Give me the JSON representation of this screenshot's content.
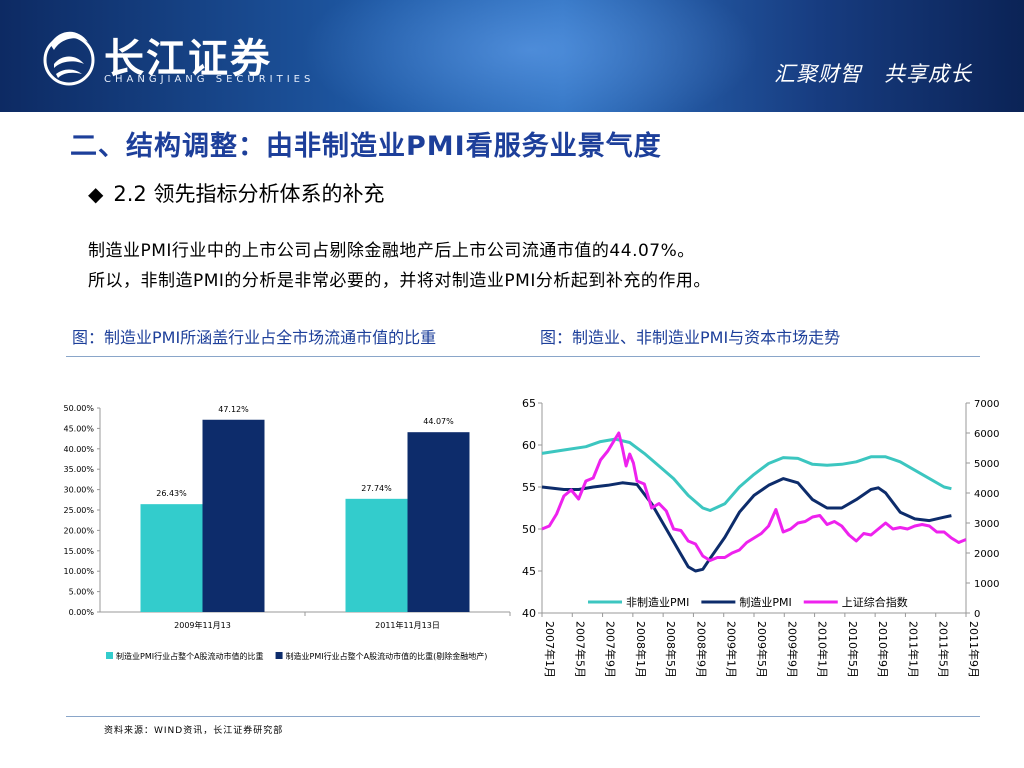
{
  "header": {
    "logo_name": "长江证券",
    "logo_sub": "CHANGJIANG SECURITIES",
    "slogan": "汇聚财智　共享成长"
  },
  "title": "二、结构调整：由非制造业PMI看服务业景气度",
  "subtitle": "2.2 领先指标分析体系的补充",
  "paragraphs": [
    "制造业PMI行业中的上市公司占剔除金融地产后上市公司流通市值的44.07%。",
    "所以，非制造PMI的分析是非常必要的，并将对制造业PMI分析起到补充的作用。"
  ],
  "captions": {
    "left": "图：制造业PMI所涵盖行业占全市场流通市值的比重",
    "right": "图：制造业、非制造业PMI与资本市场走势"
  },
  "source": "资料来源：WIND资讯，长江证券研究部",
  "colors": {
    "title_blue": "#1d3f9a",
    "bar_teal": "#33cccc",
    "bar_navy": "#0d2c6b",
    "line_nonmfg": "#3cc6c0",
    "line_mfg": "#0d2c6b",
    "line_index": "#ee22ee"
  },
  "chart_data": [
    {
      "type": "bar",
      "categories": [
        "2009年11月13",
        "2011年11月13日"
      ],
      "series": [
        {
          "name": "制造业PMI行业占整个A股流动市值的比重",
          "values": [
            26.43,
            27.74
          ]
        },
        {
          "name": "制造业PMI行业占整个A股流动市值的比重(剔除金融地产)",
          "values": [
            47.12,
            44.07
          ]
        }
      ],
      "data_labels": [
        [
          "26.43%",
          "27.74%"
        ],
        [
          "47.12%",
          "44.07%"
        ]
      ],
      "y_ticks": [
        "0.00%",
        "5.00%",
        "10.00%",
        "15.00%",
        "20.00%",
        "25.00%",
        "30.00%",
        "35.00%",
        "40.00%",
        "45.00%",
        "50.00%"
      ],
      "ylim": [
        0,
        50
      ],
      "legend": "bottom"
    },
    {
      "type": "line",
      "x_labels": [
        "2007年1月",
        "2007年5月",
        "2007年9月",
        "2008年1月",
        "2008年5月",
        "2008年9月",
        "2009年1月",
        "2009年5月",
        "2009年9月",
        "2010年1月",
        "2010年5月",
        "2010年9月",
        "2011年1月",
        "2011年5月",
        "2011年9月"
      ],
      "x_range": [
        0,
        58
      ],
      "y_left_ticks": [
        "40",
        "45",
        "50",
        "55",
        "60",
        "65"
      ],
      "y_left_range": [
        40,
        65
      ],
      "y_right_ticks": [
        "0",
        "1000",
        "2000",
        "3000",
        "4000",
        "5000",
        "6000",
        "7000"
      ],
      "y_right_range": [
        0,
        7000
      ],
      "legend": "bottom-right",
      "series": [
        {
          "name": "非制造业PMI",
          "axis": "left",
          "points": [
            [
              0,
              59.0
            ],
            [
              3,
              59.4
            ],
            [
              6,
              59.8
            ],
            [
              8,
              60.4
            ],
            [
              10,
              60.7
            ],
            [
              12,
              60.3
            ],
            [
              14,
              59.0
            ],
            [
              16,
              57.5
            ],
            [
              18,
              56.0
            ],
            [
              20,
              54.0
            ],
            [
              22,
              52.5
            ],
            [
              23,
              52.2
            ],
            [
              25,
              53.0
            ],
            [
              27,
              55.0
            ],
            [
              29,
              56.5
            ],
            [
              31,
              57.8
            ],
            [
              33,
              58.5
            ],
            [
              35,
              58.4
            ],
            [
              37,
              57.7
            ],
            [
              39,
              57.6
            ],
            [
              41,
              57.7
            ],
            [
              43,
              58.0
            ],
            [
              45,
              58.6
            ],
            [
              47,
              58.6
            ],
            [
              49,
              58.0
            ],
            [
              51,
              57.0
            ],
            [
              53,
              56.0
            ],
            [
              55,
              55.0
            ],
            [
              56,
              54.8
            ]
          ]
        },
        {
          "name": "制造业PMI",
          "axis": "left",
          "points": [
            [
              0,
              55.0
            ],
            [
              3,
              54.7
            ],
            [
              5,
              54.7
            ],
            [
              7,
              55.0
            ],
            [
              9,
              55.2
            ],
            [
              11,
              55.5
            ],
            [
              13,
              55.3
            ],
            [
              15,
              53.0
            ],
            [
              17,
              50.0
            ],
            [
              19,
              47.0
            ],
            [
              20,
              45.5
            ],
            [
              21,
              45.0
            ],
            [
              22,
              45.2
            ],
            [
              23,
              46.5
            ],
            [
              25,
              49.0
            ],
            [
              27,
              52.0
            ],
            [
              29,
              54.0
            ],
            [
              31,
              55.2
            ],
            [
              33,
              56.0
            ],
            [
              35,
              55.5
            ],
            [
              37,
              53.5
            ],
            [
              39,
              52.5
            ],
            [
              41,
              52.5
            ],
            [
              43,
              53.5
            ],
            [
              45,
              54.7
            ],
            [
              46,
              54.9
            ],
            [
              47,
              54.3
            ],
            [
              49,
              52.0
            ],
            [
              51,
              51.2
            ],
            [
              53,
              51.0
            ],
            [
              55,
              51.4
            ],
            [
              56,
              51.6
            ]
          ]
        },
        {
          "name": "上证综合指数",
          "axis": "right",
          "points": [
            [
              0,
              2800
            ],
            [
              1,
              2900
            ],
            [
              2,
              3300
            ],
            [
              3,
              3900
            ],
            [
              4,
              4100
            ],
            [
              5,
              3800
            ],
            [
              6,
              4400
            ],
            [
              7,
              4500
            ],
            [
              8,
              5100
            ],
            [
              9,
              5400
            ],
            [
              10,
              5800
            ],
            [
              10.5,
              6000
            ],
            [
              11,
              5500
            ],
            [
              11.5,
              4900
            ],
            [
              12,
              5300
            ],
            [
              12.5,
              5000
            ],
            [
              13,
              4400
            ],
            [
              14,
              4300
            ],
            [
              15,
              3500
            ],
            [
              16,
              3650
            ],
            [
              17,
              3400
            ],
            [
              18,
              2800
            ],
            [
              19,
              2750
            ],
            [
              20,
              2400
            ],
            [
              21,
              2300
            ],
            [
              22,
              1900
            ],
            [
              23,
              1750
            ],
            [
              24,
              1850
            ],
            [
              25,
              1850
            ],
            [
              26,
              2000
            ],
            [
              27,
              2100
            ],
            [
              28,
              2350
            ],
            [
              29,
              2500
            ],
            [
              30,
              2650
            ],
            [
              31,
              2900
            ],
            [
              32,
              3450
            ],
            [
              33,
              2700
            ],
            [
              34,
              2800
            ],
            [
              35,
              3000
            ],
            [
              36,
              3050
            ],
            [
              37,
              3200
            ],
            [
              38,
              3250
            ],
            [
              39,
              2950
            ],
            [
              40,
              3050
            ],
            [
              41,
              2900
            ],
            [
              42,
              2600
            ],
            [
              43,
              2400
            ],
            [
              44,
              2650
            ],
            [
              45,
              2600
            ],
            [
              46,
              2800
            ],
            [
              47,
              3000
            ],
            [
              48,
              2800
            ],
            [
              49,
              2850
            ],
            [
              50,
              2800
            ],
            [
              51,
              2900
            ],
            [
              52,
              2950
            ],
            [
              53,
              2900
            ],
            [
              54,
              2700
            ],
            [
              55,
              2700
            ],
            [
              56,
              2500
            ],
            [
              57,
              2350
            ],
            [
              58,
              2450
            ]
          ]
        }
      ]
    }
  ]
}
